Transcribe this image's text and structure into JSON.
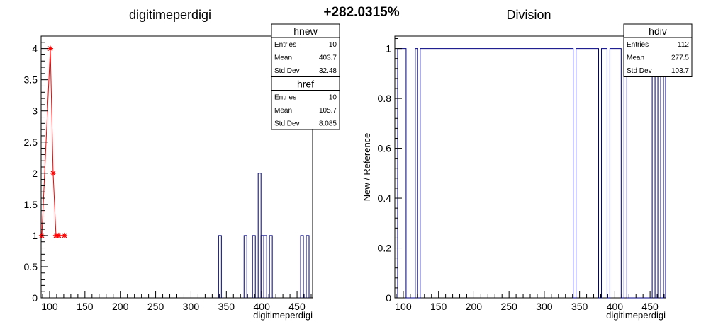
{
  "header": {
    "percent_change": "+282.0315%"
  },
  "chart_data": [
    {
      "type": "histogram",
      "title": "digitimeperdigi",
      "xlabel": "digitimeperdigi",
      "ylabel": "",
      "xlim": [
        88,
        472
      ],
      "ylim": [
        0,
        4.2
      ],
      "x_ticks": [
        100,
        150,
        200,
        250,
        300,
        350,
        400,
        450
      ],
      "y_ticks": [
        0,
        0.5,
        1,
        1.5,
        2,
        2.5,
        3,
        3.5,
        4
      ],
      "grid": false,
      "series": [
        {
          "name": "hnew",
          "style": "step",
          "color": "#000080",
          "bin_width": 4,
          "bins": [
            {
              "x": 341,
              "y": 1
            },
            {
              "x": 377,
              "y": 1
            },
            {
              "x": 389,
              "y": 1
            },
            {
              "x": 397,
              "y": 2
            },
            {
              "x": 401,
              "y": 1
            },
            {
              "x": 405,
              "y": 1
            },
            {
              "x": 413,
              "y": 1
            },
            {
              "x": 457,
              "y": 1
            },
            {
              "x": 465,
              "y": 1
            }
          ]
        },
        {
          "name": "href",
          "style": "markers",
          "color": "#ff0000",
          "bin_width": 4,
          "bins": [
            {
              "x": 89,
              "y": 1
            },
            {
              "x": 101,
              "y": 4
            },
            {
              "x": 105,
              "y": 2
            },
            {
              "x": 109,
              "y": 1
            },
            {
              "x": 113,
              "y": 1
            },
            {
              "x": 121,
              "y": 1
            }
          ]
        }
      ],
      "stats_boxes": [
        {
          "title": "hnew",
          "rows": [
            {
              "label": "Entries",
              "value": "10"
            },
            {
              "label": "Mean",
              "value": "403.7"
            },
            {
              "label": "Std Dev",
              "value": "32.48"
            }
          ]
        },
        {
          "title": "href",
          "rows": [
            {
              "label": "Entries",
              "value": "10"
            },
            {
              "label": "Mean",
              "value": "105.7"
            },
            {
              "label": "Std Dev",
              "value": "8.085"
            }
          ]
        }
      ]
    },
    {
      "type": "histogram",
      "title": "Division",
      "xlabel": "digitimeperdigi",
      "ylabel": "New / Reference",
      "xlim": [
        88,
        472
      ],
      "ylim": [
        0,
        1.05
      ],
      "x_ticks": [
        100,
        150,
        200,
        250,
        300,
        350,
        400,
        450
      ],
      "y_ticks": [
        0,
        0.2,
        0.4,
        0.6,
        0.8,
        1
      ],
      "y_tick_labels": [
        "0",
        "0.2",
        "0.4",
        "0.6",
        "0.8",
        "1"
      ],
      "grid": false,
      "series": [
        {
          "name": "hdiv",
          "style": "step",
          "color": "#000080",
          "segments": [
            {
              "x0": 92,
              "x1": 104,
              "y": 1
            },
            {
              "x0": 104,
              "x1": 117,
              "y": 0
            },
            {
              "x0": 117,
              "x1": 120,
              "y": 1
            },
            {
              "x0": 120,
              "x1": 124,
              "y": 0
            },
            {
              "x0": 124,
              "x1": 341,
              "y": 1
            },
            {
              "x0": 341,
              "x1": 345,
              "y": 0
            },
            {
              "x0": 345,
              "x1": 377,
              "y": 1
            },
            {
              "x0": 377,
              "x1": 381,
              "y": 0
            },
            {
              "x0": 381,
              "x1": 389,
              "y": 1
            },
            {
              "x0": 389,
              "x1": 393,
              "y": 0
            },
            {
              "x0": 393,
              "x1": 409,
              "y": 1
            },
            {
              "x0": 409,
              "x1": 413,
              "y": 0
            },
            {
              "x0": 413,
              "x1": 417,
              "y": 1
            },
            {
              "x0": 417,
              "x1": 453,
              "y": 0
            },
            {
              "x0": 453,
              "x1": 457,
              "y": 1
            },
            {
              "x0": 457,
              "x1": 461,
              "y": 0
            },
            {
              "x0": 461,
              "x1": 465,
              "y": 1
            },
            {
              "x0": 465,
              "x1": 469,
              "y": 0
            },
            {
              "x0": 469,
              "x1": 472,
              "y": 1
            }
          ]
        }
      ],
      "stats_boxes": [
        {
          "title": "hdiv",
          "rows": [
            {
              "label": "Entries",
              "value": "112"
            },
            {
              "label": "Mean",
              "value": "277.5"
            },
            {
              "label": "Std Dev",
              "value": "103.7"
            }
          ]
        }
      ]
    }
  ]
}
